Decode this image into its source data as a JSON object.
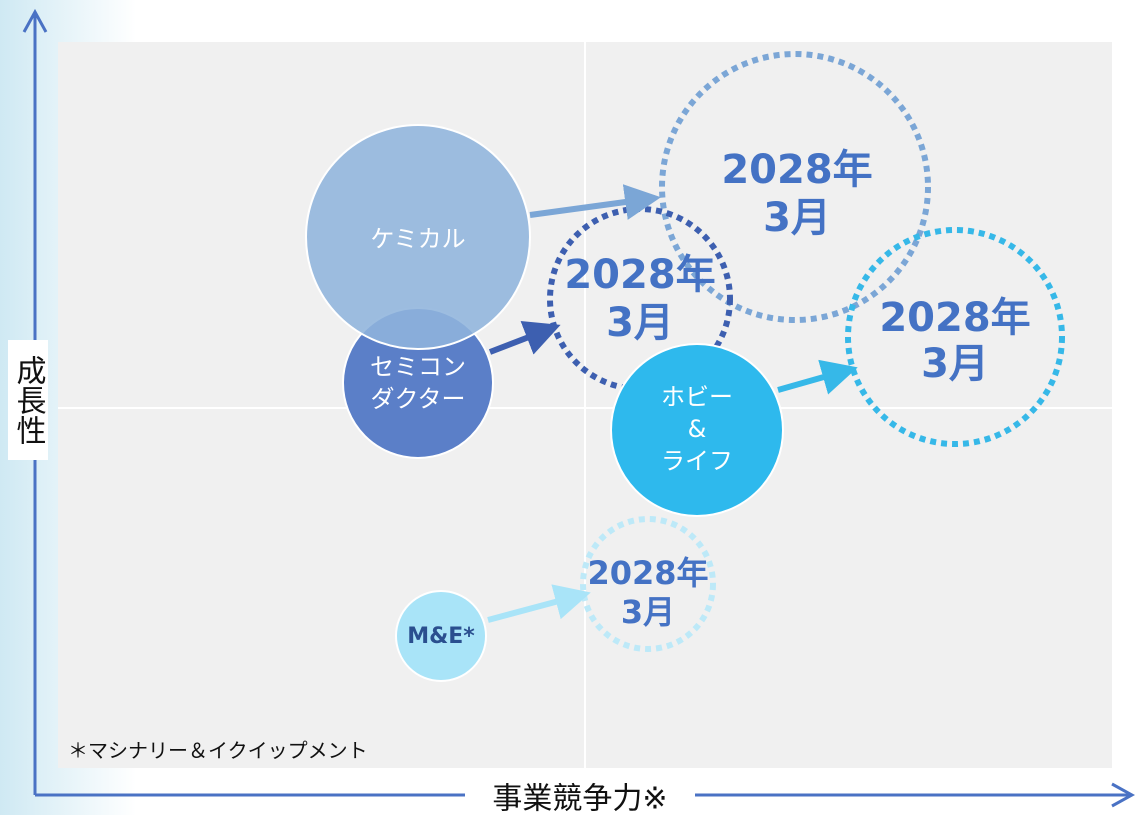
{
  "axes": {
    "y_label": "成長性",
    "x_label": "事業競争力※"
  },
  "footnote": "＊マシナリー＆イクイップメント",
  "segments": [
    {
      "name": [
        "ケミカル"
      ],
      "target": [
        "2028年",
        "3月"
      ]
    },
    {
      "name": [
        "セミコン",
        "ダクター"
      ],
      "target": [
        "2028年",
        "3月"
      ]
    },
    {
      "name": [
        "ホビー",
        "&",
        "ライフ"
      ],
      "target": [
        "2028年",
        "3月"
      ]
    },
    {
      "name": [
        "M&E*"
      ],
      "target": [
        "2028年",
        "3月"
      ]
    }
  ]
}
